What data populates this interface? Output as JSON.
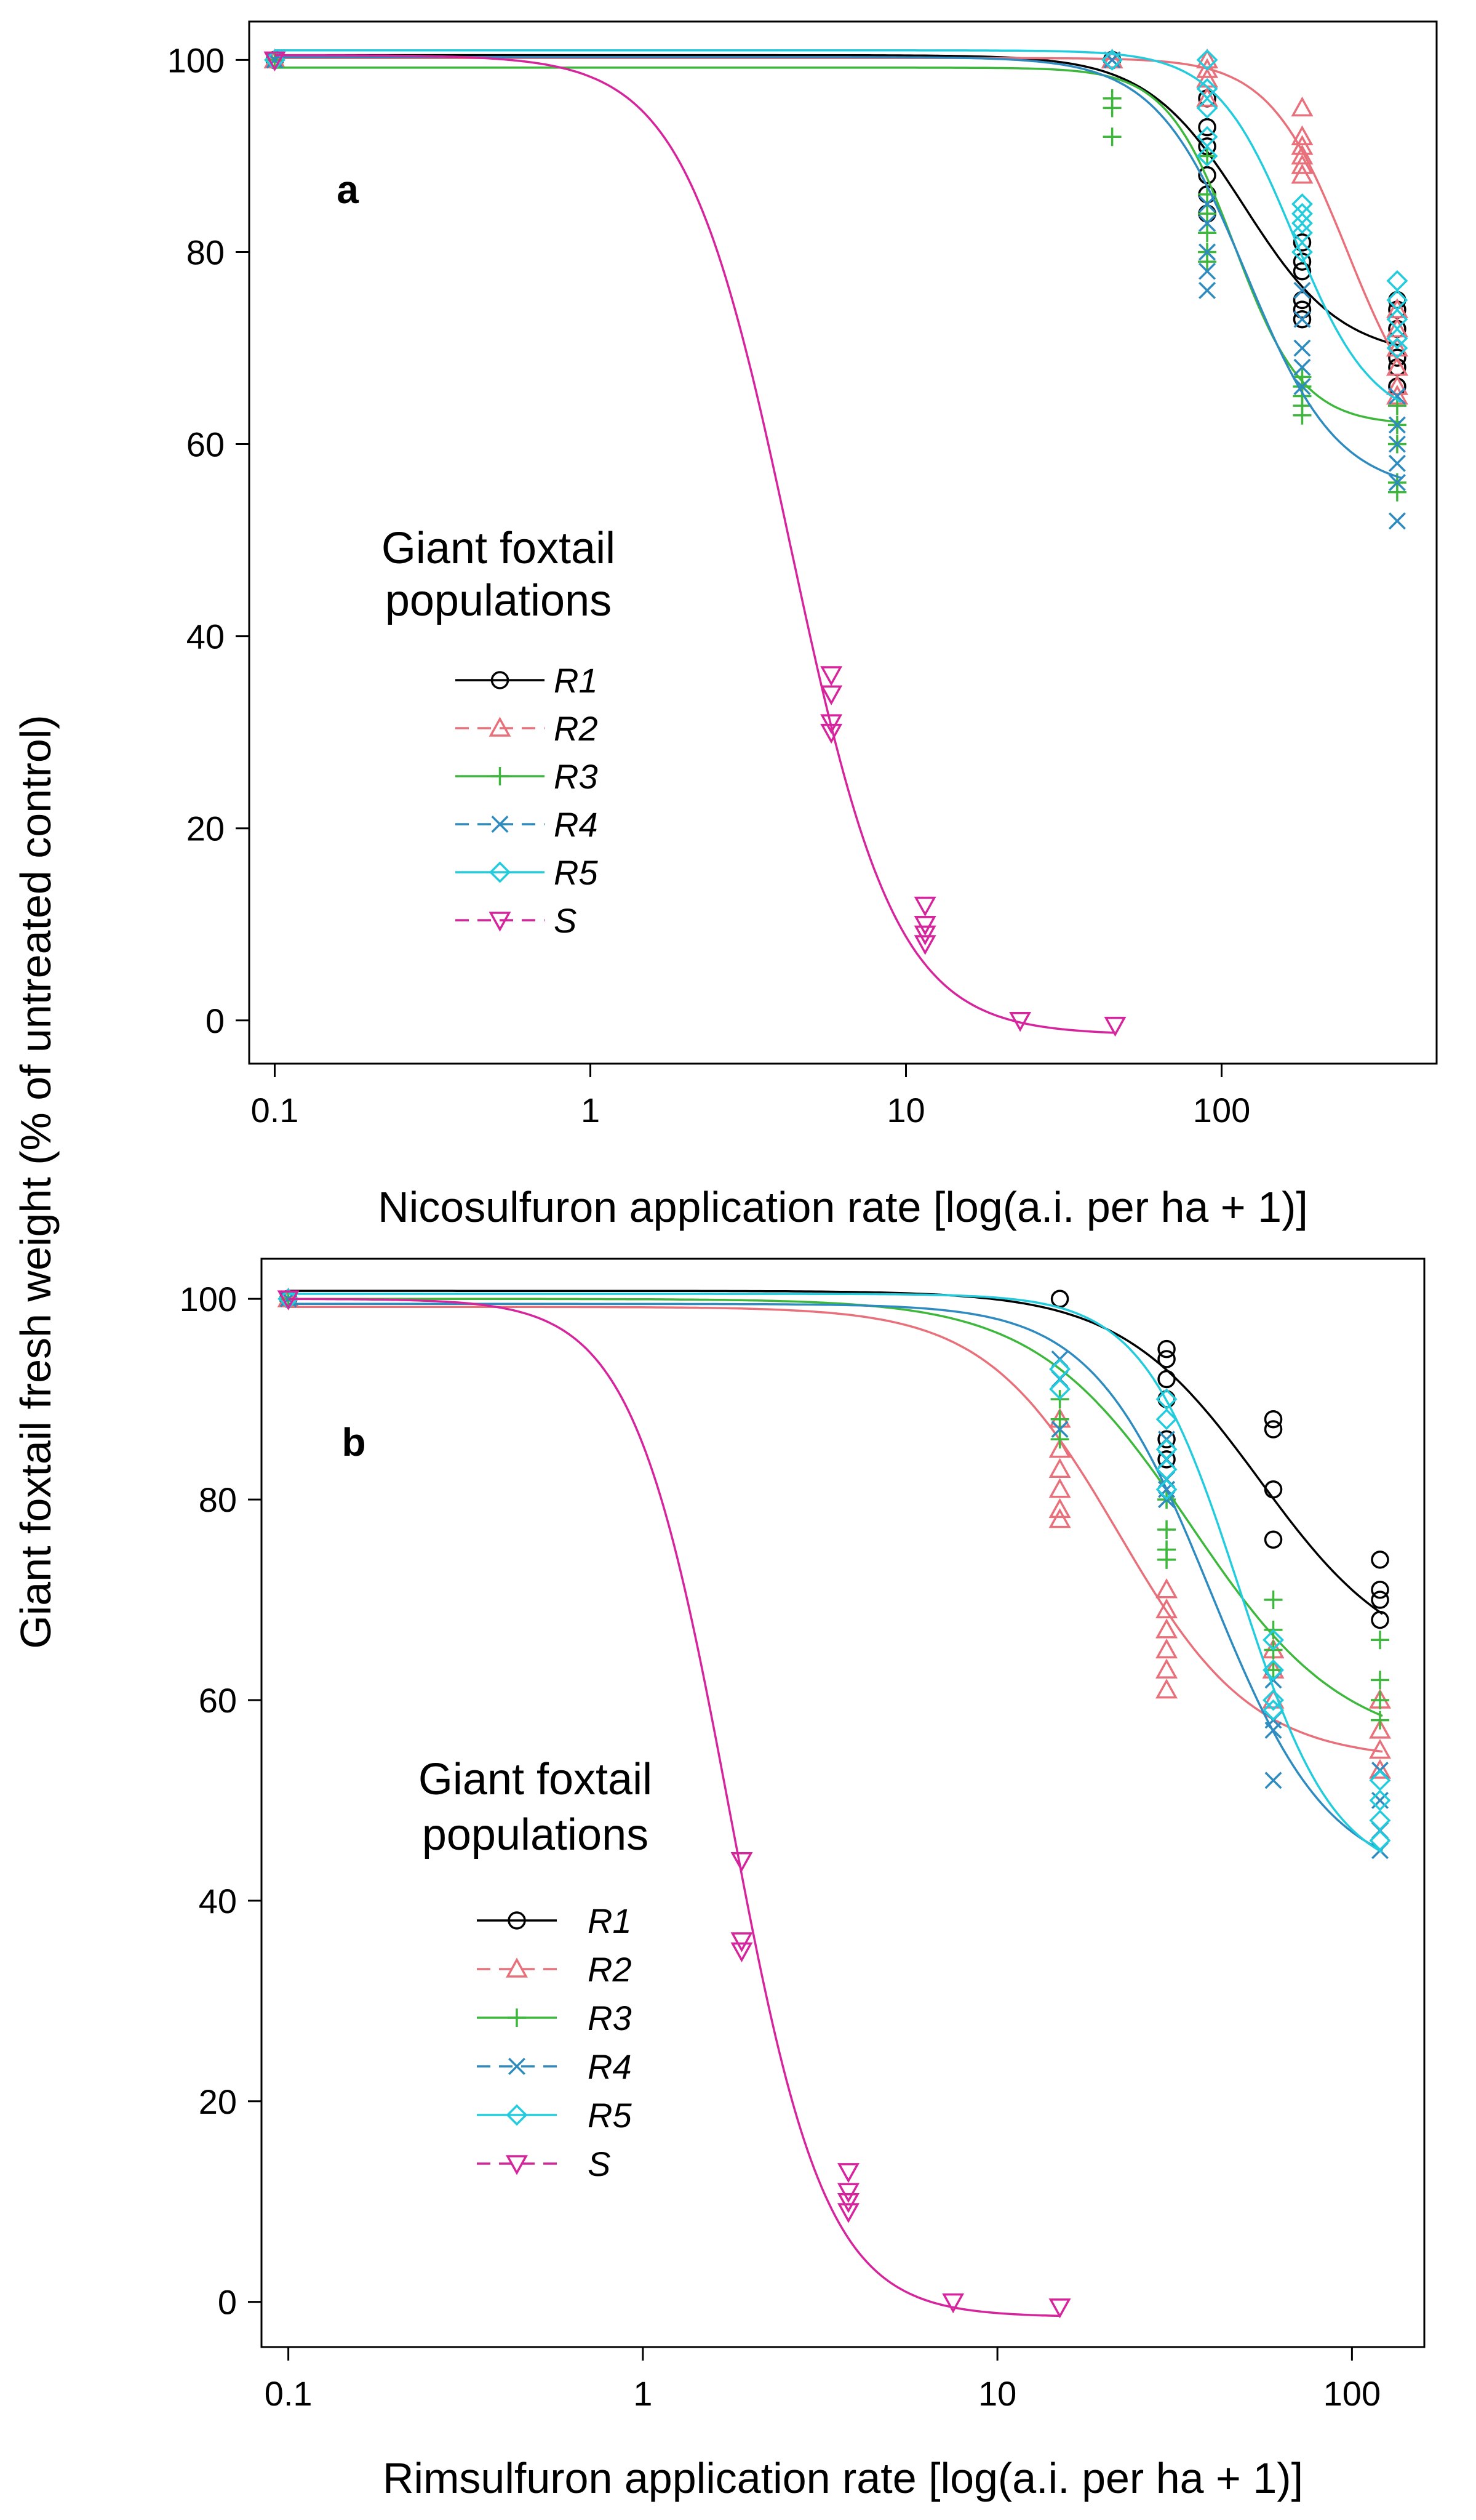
{
  "ylabel": "Giant foxtail fresh weight (% of untreated control)",
  "chart_data": [
    {
      "type": "line",
      "panel": "a",
      "xlabel": "Nicosulfuron application rate [log(a.i. per ha + 1)]",
      "x_scale": "log",
      "xlim": [
        0.083,
        480
      ],
      "ylim": [
        -4.5,
        104
      ],
      "xticks": [
        0.1,
        1,
        10,
        100
      ],
      "xtick_labels": [
        "0.1",
        "1",
        "10",
        "100"
      ],
      "yticks": [
        0,
        20,
        40,
        60,
        80,
        100
      ],
      "ytick_labels": [
        "0",
        "20",
        "40",
        "60",
        "80",
        "100"
      ],
      "legend_title": "Giant foxtail populations",
      "legend_position": "center-left",
      "series": [
        {
          "name": "R1",
          "color": "#000000",
          "dash": false,
          "marker": "circle",
          "curve": {
            "d": 100.5,
            "c": 69,
            "e": 118,
            "b": 2.8,
            "xmin": 0.1,
            "xmax": 370
          },
          "points": {
            "x": [
              0.1,
              0.1,
              45,
              90,
              90,
              90,
              90,
              90,
              90,
              180,
              180,
              180,
              180,
              180,
              180,
              360,
              360,
              360,
              360,
              360,
              360
            ],
            "y": [
              100,
              100,
              100,
              96,
              93,
              91,
              88,
              86,
              84,
              81,
              79,
              78,
              75,
              74,
              73,
              75,
              74,
              72,
              69,
              68,
              66
            ]
          }
        },
        {
          "name": "R2",
          "color": "#E8707A",
          "dash": true,
          "marker": "triangle",
          "curve": {
            "d": 100.2,
            "c": 60,
            "e": 250,
            "b": 3.5,
            "xmin": 0.1,
            "xmax": 370
          },
          "points": {
            "x": [
              0.1,
              45,
              90,
              90,
              90,
              90,
              180,
              180,
              180,
              180,
              180,
              180,
              360,
              360,
              360,
              360,
              360,
              360
            ],
            "y": [
              100,
              100,
              100,
              99,
              98,
              96,
              95,
              92,
              91,
              90,
              89,
              88,
              74,
              72,
              70,
              68,
              66,
              65
            ]
          }
        },
        {
          "name": "R3",
          "color": "#3DB83D",
          "dash": false,
          "marker": "plus",
          "curve": {
            "d": 99.2,
            "c": 62,
            "e": 110,
            "b": 4.0,
            "xmin": 0.1,
            "xmax": 370
          },
          "points": {
            "x": [
              0.1,
              45,
              45,
              45,
              90,
              90,
              90,
              90,
              90,
              90,
              180,
              180,
              180,
              180,
              180,
              360,
              360,
              360,
              360,
              360
            ],
            "y": [
              100,
              96,
              95,
              92,
              90,
              86,
              84,
              82,
              80,
              79,
              67,
              66,
              65,
              64,
              63,
              64,
              62,
              60,
              56,
              55
            ]
          }
        },
        {
          "name": "R4",
          "color": "#2E8BC0",
          "dash": true,
          "marker": "x",
          "curve": {
            "d": 100.3,
            "c": 55,
            "e": 120,
            "b": 3.0,
            "xmin": 0.1,
            "xmax": 370
          },
          "points": {
            "x": [
              0.1,
              45,
              90,
              90,
              90,
              90,
              90,
              180,
              180,
              180,
              180,
              180,
              360,
              360,
              360,
              360,
              360,
              360
            ],
            "y": [
              100,
              100,
              85,
              83,
              80,
              78,
              76,
              76,
              73,
              70,
              68,
              66,
              65,
              62,
              60,
              58,
              56,
              52
            ]
          }
        },
        {
          "name": "R5",
          "color": "#22CCDD",
          "dash": false,
          "marker": "diamond",
          "curve": {
            "d": 101,
            "c": 62,
            "e": 170,
            "b": 3.5,
            "xmin": 0.1,
            "xmax": 370
          },
          "points": {
            "x": [
              0.1,
              45,
              90,
              90,
              90,
              90,
              90,
              180,
              180,
              180,
              180,
              180,
              360,
              360,
              360,
              360,
              360
            ],
            "y": [
              100,
              100,
              100,
              97,
              95,
              92,
              90,
              85,
              84,
              83,
              82,
              80,
              77,
              75,
              73,
              71,
              70
            ]
          }
        },
        {
          "name": "S",
          "color": "#D6259C",
          "dash": true,
          "marker": "triangle-down",
          "curve": {
            "d": 100.5,
            "c": -1.5,
            "e": 4.3,
            "b": 2.6,
            "xmin": 0.1,
            "xmax": 46
          },
          "points": {
            "x": [
              0.1,
              5.8,
              5.8,
              5.8,
              5.8,
              11.5,
              11.5,
              11.5,
              11.5,
              23,
              46
            ],
            "y": [
              100,
              36,
              34,
              31,
              30,
              12,
              10,
              9,
              8,
              0,
              -0.5
            ]
          }
        }
      ]
    },
    {
      "type": "line",
      "panel": "b",
      "xlabel": "Rimsulfuron application rate [log(a.i. per ha + 1)]",
      "x_scale": "log",
      "xlim": [
        0.084,
        160
      ],
      "ylim": [
        -4.5,
        104
      ],
      "xticks": [
        0.1,
        1,
        10,
        100
      ],
      "xtick_labels": [
        "0.1",
        "1",
        "10",
        "100"
      ],
      "yticks": [
        0,
        20,
        40,
        60,
        80,
        100
      ],
      "ytick_labels": [
        "0",
        "20",
        "40",
        "60",
        "80",
        "100"
      ],
      "legend_title": "Giant foxtail populations",
      "legend_position": "lower-left",
      "series": [
        {
          "name": "R1",
          "color": "#000000",
          "dash": false,
          "marker": "circle",
          "curve": {
            "d": 100.8,
            "c": 63,
            "e": 55,
            "b": 2.2,
            "xmin": 0.1,
            "xmax": 122
          },
          "points": {
            "x": [
              0.1,
              15,
              30,
              30,
              30,
              30,
              30,
              30,
              60,
              60,
              60,
              60,
              120,
              120,
              120,
              120
            ],
            "y": [
              100,
              100,
              95,
              94,
              92,
              90,
              86,
              84,
              88,
              87,
              81,
              76,
              74,
              71,
              70,
              68
            ]
          }
        },
        {
          "name": "R2",
          "color": "#E8707A",
          "dash": true,
          "marker": "triangle",
          "curve": {
            "d": 99.2,
            "c": 54,
            "e": 22,
            "b": 2.3,
            "xmin": 0.1,
            "xmax": 122
          },
          "points": {
            "x": [
              0.1,
              15,
              15,
              15,
              15,
              15,
              15,
              30,
              30,
              30,
              30,
              30,
              30,
              60,
              60,
              60,
              120,
              120,
              120,
              120
            ],
            "y": [
              100,
              88,
              85,
              83,
              81,
              79,
              78,
              71,
              69,
              67,
              65,
              63,
              61,
              65,
              63,
              60,
              60,
              57,
              55,
              53
            ]
          }
        },
        {
          "name": "R3",
          "color": "#3DB83D",
          "dash": false,
          "marker": "plus",
          "curve": {
            "d": 100,
            "c": 55,
            "e": 35,
            "b": 2.0,
            "xmin": 0.1,
            "xmax": 122
          },
          "points": {
            "x": [
              0.1,
              15,
              15,
              15,
              30,
              30,
              30,
              30,
              60,
              60,
              60,
              60,
              120,
              120,
              120,
              120
            ],
            "y": [
              100,
              90,
              88,
              86,
              80,
              77,
              75,
              74,
              70,
              67,
              65,
              63,
              66,
              62,
              60,
              58
            ]
          }
        },
        {
          "name": "R4",
          "color": "#2E8BC0",
          "dash": true,
          "marker": "x",
          "curve": {
            "d": 99.5,
            "c": 42,
            "e": 40,
            "b": 2.6,
            "xmin": 0.1,
            "xmax": 122
          },
          "points": {
            "x": [
              0.1,
              15,
              15,
              15,
              30,
              30,
              30,
              30,
              30,
              60,
              60,
              60,
              60,
              120,
              120,
              120,
              120
            ],
            "y": [
              100,
              94,
              92,
              87,
              86,
              84,
              82,
              81,
              80,
              62,
              58,
              57,
              52,
              53,
              50,
              47,
              45
            ]
          }
        },
        {
          "name": "R5",
          "color": "#22CCDD",
          "dash": false,
          "marker": "diamond",
          "curve": {
            "d": 100.5,
            "c": 42,
            "e": 48,
            "b": 3.2,
            "xmin": 0.1,
            "xmax": 122
          },
          "points": {
            "x": [
              0.1,
              15,
              15,
              30,
              30,
              30,
              30,
              30,
              60,
              60,
              60,
              60,
              120,
              120,
              120,
              120
            ],
            "y": [
              100,
              93,
              91,
              90,
              88,
              85,
              83,
              81,
              66,
              63,
              60,
              59,
              52,
              50,
              48,
              46
            ]
          }
        },
        {
          "name": "S",
          "color": "#D6259C",
          "dash": true,
          "marker": "triangle-down",
          "curve": {
            "d": 100,
            "c": -1.5,
            "e": 1.75,
            "b": 3.2,
            "xmin": 0.1,
            "xmax": 15
          },
          "points": {
            "x": [
              0.1,
              1.9,
              1.9,
              1.9,
              3.8,
              3.8,
              3.8,
              3.8,
              7.5,
              15
            ],
            "y": [
              100,
              44,
              36,
              35,
              13,
              11,
              10,
              9,
              0,
              -0.5
            ]
          }
        }
      ]
    }
  ]
}
